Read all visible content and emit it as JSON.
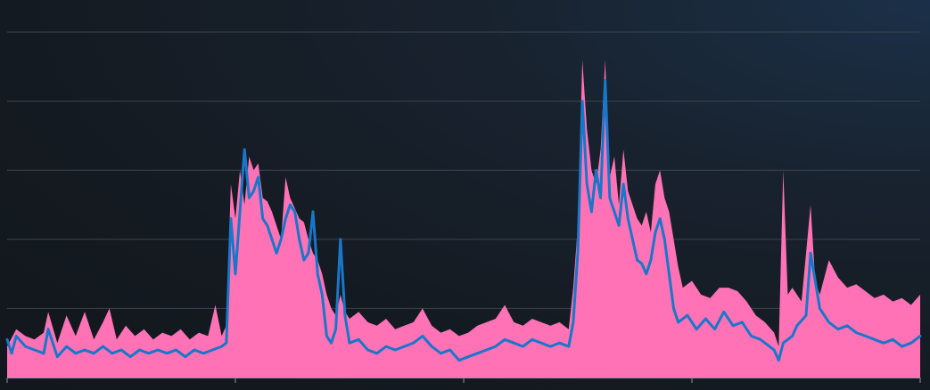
{
  "colors": {
    "background": "#141a21",
    "gridline": "#3a444e",
    "axis": "#8a949e",
    "area_fill": "#ff72b6",
    "line_stroke": "#1877c9"
  },
  "chart_data": {
    "type": "area",
    "title": "",
    "xlabel": "",
    "ylabel": "",
    "xlim": [
      0,
      1
    ],
    "ylim": [
      0,
      500
    ],
    "grid": true,
    "legend": "none",
    "x_ticks_count": 4,
    "y_grid_levels": [
      100,
      200,
      300,
      400,
      500
    ],
    "series": [
      {
        "type": "area",
        "color": "#ff72b6",
        "points": [
          [
            0.0,
            45
          ],
          [
            0.01,
            70
          ],
          [
            0.02,
            60
          ],
          [
            0.03,
            55
          ],
          [
            0.04,
            65
          ],
          [
            0.045,
            95
          ],
          [
            0.055,
            50
          ],
          [
            0.065,
            90
          ],
          [
            0.075,
            60
          ],
          [
            0.085,
            95
          ],
          [
            0.095,
            55
          ],
          [
            0.105,
            80
          ],
          [
            0.112,
            100
          ],
          [
            0.12,
            55
          ],
          [
            0.13,
            75
          ],
          [
            0.14,
            60
          ],
          [
            0.15,
            70
          ],
          [
            0.16,
            55
          ],
          [
            0.17,
            65
          ],
          [
            0.18,
            60
          ],
          [
            0.19,
            70
          ],
          [
            0.2,
            55
          ],
          [
            0.21,
            65
          ],
          [
            0.22,
            60
          ],
          [
            0.228,
            105
          ],
          [
            0.235,
            60
          ],
          [
            0.24,
            75
          ],
          [
            0.245,
            280
          ],
          [
            0.25,
            230
          ],
          [
            0.255,
            300
          ],
          [
            0.26,
            250
          ],
          [
            0.265,
            320
          ],
          [
            0.27,
            300
          ],
          [
            0.275,
            310
          ],
          [
            0.28,
            260
          ],
          [
            0.285,
            255
          ],
          [
            0.29,
            240
          ],
          [
            0.3,
            200
          ],
          [
            0.305,
            290
          ],
          [
            0.31,
            260
          ],
          [
            0.315,
            245
          ],
          [
            0.32,
            230
          ],
          [
            0.325,
            225
          ],
          [
            0.33,
            200
          ],
          [
            0.335,
            180
          ],
          [
            0.34,
            170
          ],
          [
            0.345,
            150
          ],
          [
            0.35,
            120
          ],
          [
            0.355,
            100
          ],
          [
            0.36,
            90
          ],
          [
            0.365,
            120
          ],
          [
            0.37,
            95
          ],
          [
            0.375,
            85
          ],
          [
            0.385,
            95
          ],
          [
            0.395,
            80
          ],
          [
            0.405,
            75
          ],
          [
            0.415,
            85
          ],
          [
            0.425,
            70
          ],
          [
            0.435,
            75
          ],
          [
            0.445,
            80
          ],
          [
            0.455,
            100
          ],
          [
            0.465,
            75
          ],
          [
            0.475,
            65
          ],
          [
            0.485,
            70
          ],
          [
            0.495,
            60
          ],
          [
            0.505,
            65
          ],
          [
            0.515,
            75
          ],
          [
            0.525,
            80
          ],
          [
            0.535,
            85
          ],
          [
            0.545,
            105
          ],
          [
            0.555,
            80
          ],
          [
            0.565,
            75
          ],
          [
            0.575,
            85
          ],
          [
            0.585,
            80
          ],
          [
            0.595,
            75
          ],
          [
            0.605,
            80
          ],
          [
            0.615,
            70
          ],
          [
            0.62,
            130
          ],
          [
            0.625,
            220
          ],
          [
            0.63,
            460
          ],
          [
            0.635,
            360
          ],
          [
            0.64,
            300
          ],
          [
            0.645,
            280
          ],
          [
            0.65,
            330
          ],
          [
            0.655,
            460
          ],
          [
            0.66,
            290
          ],
          [
            0.665,
            320
          ],
          [
            0.67,
            250
          ],
          [
            0.675,
            330
          ],
          [
            0.68,
            270
          ],
          [
            0.685,
            250
          ],
          [
            0.69,
            230
          ],
          [
            0.695,
            220
          ],
          [
            0.7,
            240
          ],
          [
            0.705,
            210
          ],
          [
            0.71,
            280
          ],
          [
            0.715,
            300
          ],
          [
            0.72,
            260
          ],
          [
            0.725,
            240
          ],
          [
            0.73,
            200
          ],
          [
            0.735,
            160
          ],
          [
            0.74,
            130
          ],
          [
            0.75,
            140
          ],
          [
            0.76,
            120
          ],
          [
            0.77,
            115
          ],
          [
            0.78,
            130
          ],
          [
            0.79,
            130
          ],
          [
            0.8,
            125
          ],
          [
            0.81,
            110
          ],
          [
            0.82,
            90
          ],
          [
            0.83,
            80
          ],
          [
            0.84,
            65
          ],
          [
            0.845,
            45
          ],
          [
            0.85,
            300
          ],
          [
            0.855,
            120
          ],
          [
            0.86,
            130
          ],
          [
            0.87,
            110
          ],
          [
            0.88,
            250
          ],
          [
            0.885,
            140
          ],
          [
            0.89,
            120
          ],
          [
            0.9,
            170
          ],
          [
            0.91,
            145
          ],
          [
            0.92,
            130
          ],
          [
            0.93,
            135
          ],
          [
            0.94,
            125
          ],
          [
            0.95,
            115
          ],
          [
            0.96,
            120
          ],
          [
            0.97,
            110
          ],
          [
            0.98,
            115
          ],
          [
            0.99,
            105
          ],
          [
            1.0,
            120
          ]
        ]
      },
      {
        "type": "line",
        "color": "#1877c9",
        "points": [
          [
            0.0,
            55
          ],
          [
            0.005,
            35
          ],
          [
            0.01,
            60
          ],
          [
            0.02,
            45
          ],
          [
            0.03,
            40
          ],
          [
            0.04,
            35
          ],
          [
            0.045,
            70
          ],
          [
            0.055,
            30
          ],
          [
            0.065,
            45
          ],
          [
            0.075,
            35
          ],
          [
            0.085,
            40
          ],
          [
            0.095,
            35
          ],
          [
            0.105,
            45
          ],
          [
            0.115,
            35
          ],
          [
            0.125,
            40
          ],
          [
            0.135,
            30
          ],
          [
            0.145,
            40
          ],
          [
            0.155,
            35
          ],
          [
            0.165,
            40
          ],
          [
            0.175,
            35
          ],
          [
            0.185,
            40
          ],
          [
            0.195,
            30
          ],
          [
            0.205,
            40
          ],
          [
            0.215,
            35
          ],
          [
            0.225,
            40
          ],
          [
            0.235,
            45
          ],
          [
            0.24,
            50
          ],
          [
            0.245,
            230
          ],
          [
            0.25,
            150
          ],
          [
            0.255,
            240
          ],
          [
            0.26,
            330
          ],
          [
            0.265,
            260
          ],
          [
            0.27,
            270
          ],
          [
            0.275,
            290
          ],
          [
            0.28,
            230
          ],
          [
            0.285,
            220
          ],
          [
            0.29,
            200
          ],
          [
            0.295,
            180
          ],
          [
            0.3,
            200
          ],
          [
            0.305,
            230
          ],
          [
            0.31,
            250
          ],
          [
            0.315,
            240
          ],
          [
            0.32,
            200
          ],
          [
            0.325,
            170
          ],
          [
            0.33,
            180
          ],
          [
            0.335,
            240
          ],
          [
            0.34,
            150
          ],
          [
            0.345,
            120
          ],
          [
            0.35,
            60
          ],
          [
            0.355,
            50
          ],
          [
            0.36,
            70
          ],
          [
            0.365,
            200
          ],
          [
            0.37,
            90
          ],
          [
            0.375,
            50
          ],
          [
            0.385,
            55
          ],
          [
            0.395,
            40
          ],
          [
            0.405,
            35
          ],
          [
            0.415,
            45
          ],
          [
            0.425,
            40
          ],
          [
            0.435,
            45
          ],
          [
            0.445,
            50
          ],
          [
            0.455,
            60
          ],
          [
            0.465,
            45
          ],
          [
            0.475,
            35
          ],
          [
            0.485,
            40
          ],
          [
            0.495,
            25
          ],
          [
            0.505,
            30
          ],
          [
            0.515,
            35
          ],
          [
            0.525,
            40
          ],
          [
            0.535,
            45
          ],
          [
            0.545,
            55
          ],
          [
            0.555,
            50
          ],
          [
            0.565,
            45
          ],
          [
            0.575,
            55
          ],
          [
            0.585,
            50
          ],
          [
            0.595,
            45
          ],
          [
            0.605,
            50
          ],
          [
            0.615,
            45
          ],
          [
            0.62,
            80
          ],
          [
            0.625,
            180
          ],
          [
            0.63,
            400
          ],
          [
            0.635,
            280
          ],
          [
            0.64,
            240
          ],
          [
            0.645,
            300
          ],
          [
            0.65,
            260
          ],
          [
            0.655,
            430
          ],
          [
            0.66,
            260
          ],
          [
            0.665,
            240
          ],
          [
            0.67,
            220
          ],
          [
            0.675,
            280
          ],
          [
            0.68,
            230
          ],
          [
            0.685,
            200
          ],
          [
            0.69,
            170
          ],
          [
            0.695,
            165
          ],
          [
            0.7,
            150
          ],
          [
            0.705,
            170
          ],
          [
            0.71,
            210
          ],
          [
            0.715,
            230
          ],
          [
            0.72,
            200
          ],
          [
            0.725,
            150
          ],
          [
            0.73,
            100
          ],
          [
            0.735,
            80
          ],
          [
            0.745,
            90
          ],
          [
            0.755,
            70
          ],
          [
            0.765,
            85
          ],
          [
            0.775,
            70
          ],
          [
            0.785,
            95
          ],
          [
            0.795,
            75
          ],
          [
            0.805,
            80
          ],
          [
            0.815,
            60
          ],
          [
            0.825,
            55
          ],
          [
            0.835,
            45
          ],
          [
            0.84,
            40
          ],
          [
            0.845,
            25
          ],
          [
            0.85,
            50
          ],
          [
            0.86,
            60
          ],
          [
            0.865,
            75
          ],
          [
            0.875,
            90
          ],
          [
            0.88,
            180
          ],
          [
            0.89,
            100
          ],
          [
            0.9,
            80
          ],
          [
            0.91,
            70
          ],
          [
            0.92,
            75
          ],
          [
            0.93,
            65
          ],
          [
            0.94,
            60
          ],
          [
            0.95,
            55
          ],
          [
            0.96,
            50
          ],
          [
            0.97,
            55
          ],
          [
            0.98,
            45
          ],
          [
            0.99,
            50
          ],
          [
            1.0,
            60
          ]
        ]
      }
    ]
  }
}
